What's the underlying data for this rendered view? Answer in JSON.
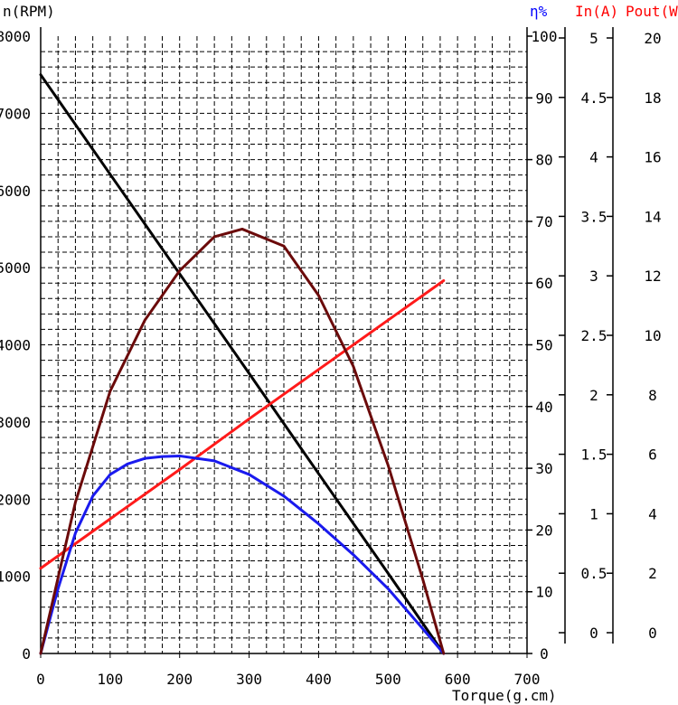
{
  "chart_data": {
    "type": "line",
    "title": "",
    "xlabel": "Torque(g.cm)",
    "xlim": [
      0,
      700
    ],
    "x_ticks": [
      "0",
      "100",
      "200",
      "300",
      "400",
      "500",
      "600",
      "700"
    ],
    "grid": true,
    "axes": {
      "speed": {
        "label": "n(RPM)",
        "ylim": [
          0,
          8000
        ],
        "ticks": [
          "0",
          "1000",
          "2000",
          "3000",
          "4000",
          "5000",
          "6000",
          "7000",
          "8000"
        ],
        "color": "#000000"
      },
      "efficiency": {
        "label": "η%",
        "ylim": [
          0,
          100
        ],
        "ticks": [
          "0",
          "10",
          "20",
          "30",
          "40",
          "50",
          "60",
          "70",
          "80",
          "90",
          "100"
        ],
        "color": "#0000ff"
      },
      "current": {
        "label": "In(A)",
        "ylim": [
          0,
          5
        ],
        "ticks": [
          "0",
          "0.5",
          "1",
          "1.5",
          "2",
          "2.5",
          "3",
          "3.5",
          "4",
          "4.5",
          "5"
        ],
        "color": "#ff0000"
      },
      "power": {
        "label": "Pout(W)",
        "ylim": [
          0,
          20
        ],
        "ticks": [
          "0",
          "2",
          "4",
          "6",
          "8",
          "10",
          "12",
          "14",
          "16",
          "18",
          "20"
        ],
        "color": "#ff0000"
      }
    },
    "series": [
      {
        "axis": "speed",
        "color": "#000000",
        "x": [
          0,
          100,
          200,
          300,
          400,
          500,
          580
        ],
        "y": [
          7500,
          6210,
          4920,
          3630,
          2330,
          1040,
          0
        ]
      },
      {
        "axis": "current",
        "color": "#ff1a1a",
        "x": [
          0,
          100,
          200,
          300,
          400,
          500,
          580
        ],
        "y": [
          0.69,
          1.09,
          1.49,
          1.9,
          2.3,
          2.7,
          3.02
        ]
      },
      {
        "axis": "efficiency",
        "color": "#1a1aee",
        "x": [
          0,
          25,
          50,
          75,
          100,
          125,
          150,
          175,
          200,
          250,
          300,
          350,
          400,
          450,
          500,
          550,
          580
        ],
        "y": [
          0,
          10.5,
          19.5,
          25.5,
          29,
          30.7,
          31.6,
          31.9,
          32,
          31.2,
          29,
          25.5,
          21,
          16,
          10.5,
          4,
          0
        ]
      },
      {
        "axis": "power",
        "color": "#6b0a0a",
        "x": [
          0,
          50,
          100,
          150,
          200,
          250,
          290,
          350,
          400,
          450,
          500,
          550,
          580
        ],
        "y": [
          0,
          4.9,
          8.5,
          10.8,
          12.4,
          13.5,
          13.75,
          13.2,
          11.6,
          9.3,
          6.1,
          2.4,
          0
        ]
      }
    ]
  }
}
